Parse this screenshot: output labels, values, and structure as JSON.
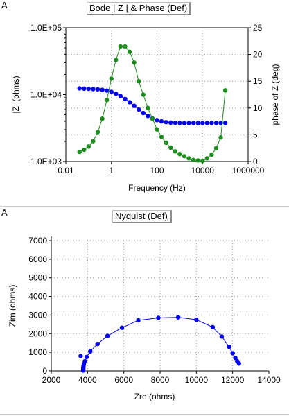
{
  "panels": [
    {
      "letter": "A",
      "title": "Bode | Z | & Phase (Def)"
    },
    {
      "letter": "A",
      "title": "Nyquist (Def)"
    }
  ],
  "chart_data": [
    {
      "type": "scatter",
      "title": "Bode | Z | & Phase (Def)",
      "xlabel": "Frequency (Hz)",
      "ylabel": "|Z| (ohms)",
      "y2label": "phase of Z (deg)",
      "xscale": "log",
      "yscale": "log",
      "xlim": [
        0.01,
        1000000
      ],
      "ylim": [
        1000,
        100000
      ],
      "y2lim": [
        0,
        25
      ],
      "xticks": [
        "0.01",
        "1",
        "100",
        "10000",
        "1000000"
      ],
      "yticks": [
        "1.0E+03",
        "1.0E+04",
        "1.0E+05"
      ],
      "y2ticks": [
        "0",
        "5",
        "10",
        "15",
        "20",
        "25"
      ],
      "grid": "dotted",
      "x": [
        0.0399,
        0.0632,
        0.1,
        0.158,
        0.251,
        0.398,
        0.631,
        1.0,
        1.58,
        2.51,
        3.98,
        6.31,
        10.0,
        15.8,
        25.1,
        39.8,
        63.1,
        100,
        158,
        251,
        398,
        631,
        1000,
        1580,
        2510,
        3980,
        6310,
        10000,
        15800,
        25100,
        39800,
        63100,
        100000
      ],
      "series": [
        {
          "color": "#0000ee",
          "axis": "left",
          "values": [
            12400,
            12300,
            12200,
            12100,
            12000,
            11800,
            11500,
            11000,
            10300,
            9500,
            8600,
            7700,
            6800,
            6000,
            5300,
            4800,
            4400,
            4150,
            3980,
            3870,
            3820,
            3790,
            3770,
            3760,
            3760,
            3760,
            3760,
            3760,
            3760,
            3760,
            3760,
            3760,
            3770
          ]
        },
        {
          "color": "#1e8c1e",
          "axis": "right",
          "values": [
            1.8,
            2.2,
            2.8,
            3.8,
            5.5,
            8.0,
            11.5,
            15.5,
            19.0,
            21.5,
            21.5,
            20.5,
            18.5,
            15.0,
            12.5,
            10.0,
            8.0,
            6.0,
            4.6,
            3.5,
            2.6,
            1.9,
            1.4,
            1.0,
            0.6,
            0.3,
            0.2,
            0.1,
            0.6,
            1.3,
            2.5,
            4.5,
            13.3
          ]
        }
      ]
    },
    {
      "type": "scatter",
      "title": "Nyquist (Def)",
      "xlabel": "Zre (ohms)",
      "ylabel": "Zim (ohms)",
      "xlim": [
        2000,
        14000
      ],
      "ylim": [
        0,
        7000
      ],
      "xticks": [
        "2000",
        "4000",
        "6000",
        "8000",
        "10000",
        "12000",
        "14000"
      ],
      "yticks": [
        "0",
        "1000",
        "2000",
        "3000",
        "4000",
        "5000",
        "6000",
        "7000"
      ],
      "grid": "dotted",
      "color": "#0000ee",
      "x": [
        12350,
        12250,
        12150,
        12000,
        11800,
        11400,
        10900,
        10000,
        9000,
        7900,
        6800,
        5900,
        5100,
        4550,
        4150,
        3950,
        3850,
        3800,
        3780,
        3770,
        3765,
        3760,
        3760,
        3760,
        3620
      ],
      "y": [
        400,
        520,
        700,
        950,
        1300,
        1850,
        2350,
        2750,
        2880,
        2850,
        2720,
        2320,
        1880,
        1450,
        1050,
        750,
        520,
        380,
        280,
        200,
        130,
        80,
        40,
        20,
        800
      ]
    }
  ]
}
